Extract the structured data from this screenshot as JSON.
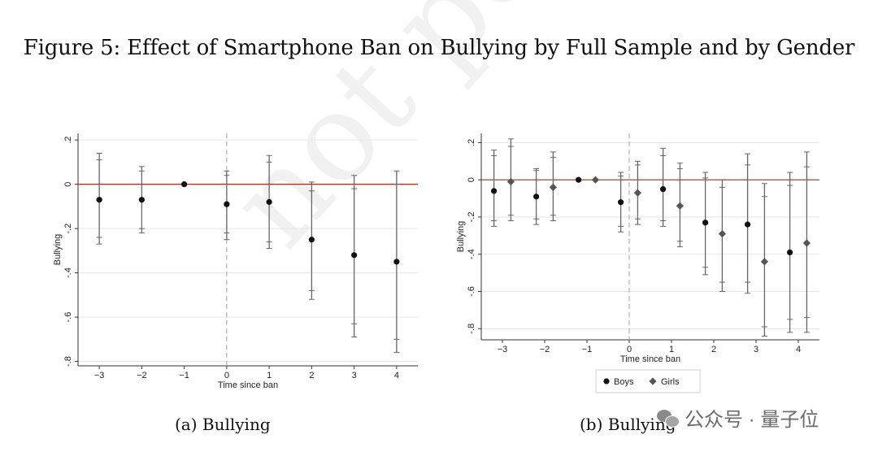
{
  "figure_title": "Figure 5: Effect of Smartphone Ban on Bullying by Full Sample and by Gender",
  "watermark": "not peer rev",
  "wechat_badge": {
    "label": "公众号 · 量子位",
    "icon": "wechat-icon"
  },
  "colors": {
    "zero_line": "#a0302a",
    "vline": "#b0b0b0",
    "boys": "#111111",
    "girls": "#555555",
    "ci": "#666666",
    "grid": "#e6e6e6"
  },
  "chart_data": [
    {
      "type": "scatter",
      "subtitle": "(a) Bullying",
      "xlabel": "Time since ban",
      "ylabel": "Bullying",
      "x_ticks": [
        -3,
        -2,
        -1,
        0,
        1,
        2,
        3,
        4
      ],
      "x_tick_labels": [
        "−3",
        "−2",
        "−1",
        "0",
        "1",
        "2",
        "3",
        "4"
      ],
      "y_ticks": [
        0.2,
        0,
        -0.2,
        -0.4,
        -0.6,
        -0.8
      ],
      "y_tick_labels": [
        ".2",
        "0",
        "-.2",
        "-.4",
        "-.6",
        "-.8"
      ],
      "xlim": [
        -3.5,
        4.5
      ],
      "ylim": [
        -0.82,
        0.23
      ],
      "reference_line_y": 0,
      "event_line_x": 0,
      "series": [
        {
          "name": "Full sample",
          "marker": "circle",
          "x": [
            -3,
            -2,
            -1,
            0,
            1,
            2,
            3,
            4
          ],
          "y": [
            -0.07,
            -0.07,
            0.0,
            -0.09,
            -0.08,
            -0.25,
            -0.32,
            -0.35
          ],
          "ci90": [
            [
              -0.24,
              0.11
            ],
            [
              -0.2,
              0.06
            ],
            null,
            [
              -0.22,
              0.04
            ],
            [
              -0.26,
              0.1
            ],
            [
              -0.48,
              -0.03
            ],
            [
              -0.63,
              -0.02
            ],
            [
              -0.7,
              0.0
            ]
          ],
          "ci95": [
            [
              -0.27,
              0.14
            ],
            [
              -0.22,
              0.08
            ],
            null,
            [
              -0.25,
              0.06
            ],
            [
              -0.29,
              0.13
            ],
            [
              -0.52,
              0.01
            ],
            [
              -0.69,
              0.04
            ],
            [
              -0.76,
              0.06
            ]
          ]
        }
      ]
    },
    {
      "type": "scatter",
      "subtitle": "(b) Bullying",
      "xlabel": "Time since ban",
      "ylabel": "Bullying",
      "x_ticks": [
        -3,
        -2,
        -1,
        0,
        1,
        2,
        3,
        4
      ],
      "x_tick_labels": [
        "−3",
        "−2",
        "−1",
        "0",
        "1",
        "2",
        "3",
        "4"
      ],
      "y_ticks": [
        0.2,
        0,
        -0.2,
        -0.4,
        -0.6,
        -0.8
      ],
      "y_tick_labels": [
        ".2",
        "0",
        "-.2",
        "-.4",
        "-.6",
        "-.8"
      ],
      "xlim": [
        -3.5,
        4.5
      ],
      "ylim": [
        -0.86,
        0.25
      ],
      "reference_line_y": 0,
      "event_line_x": 0,
      "legend": [
        "Boys",
        "Girls"
      ],
      "series": [
        {
          "name": "Boys",
          "marker": "circle",
          "x": [
            -3,
            -2,
            -1,
            0,
            1,
            2,
            3,
            4
          ],
          "y": [
            -0.06,
            -0.09,
            0.0,
            -0.12,
            -0.05,
            -0.23,
            -0.24,
            -0.39
          ],
          "ci90": [
            [
              -0.22,
              0.13
            ],
            [
              -0.21,
              0.05
            ],
            null,
            [
              -0.25,
              0.02
            ],
            [
              -0.22,
              0.13
            ],
            [
              -0.47,
              0.01
            ],
            [
              -0.55,
              0.08
            ],
            [
              -0.75,
              -0.03
            ]
          ],
          "ci95": [
            [
              -0.25,
              0.16
            ],
            [
              -0.24,
              0.06
            ],
            null,
            [
              -0.28,
              0.04
            ],
            [
              -0.25,
              0.17
            ],
            [
              -0.51,
              0.04
            ],
            [
              -0.61,
              0.14
            ],
            [
              -0.82,
              0.04
            ]
          ]
        },
        {
          "name": "Girls",
          "marker": "diamond",
          "x": [
            -3,
            -2,
            -1,
            0,
            1,
            2,
            3,
            4
          ],
          "y": [
            -0.01,
            -0.04,
            0.0,
            -0.07,
            -0.14,
            -0.29,
            -0.44,
            -0.34
          ],
          "ci90": [
            [
              -0.19,
              0.18
            ],
            [
              -0.19,
              0.12
            ],
            null,
            [
              -0.21,
              0.08
            ],
            [
              -0.33,
              0.06
            ],
            [
              -0.55,
              -0.04
            ],
            [
              -0.79,
              -0.09
            ],
            [
              -0.74,
              0.07
            ]
          ],
          "ci95": [
            [
              -0.22,
              0.22
            ],
            [
              -0.22,
              0.15
            ],
            null,
            [
              -0.24,
              0.1
            ],
            [
              -0.36,
              0.09
            ],
            [
              -0.6,
              0.0
            ],
            [
              -0.84,
              -0.02
            ],
            [
              -0.82,
              0.15
            ]
          ]
        }
      ]
    }
  ]
}
